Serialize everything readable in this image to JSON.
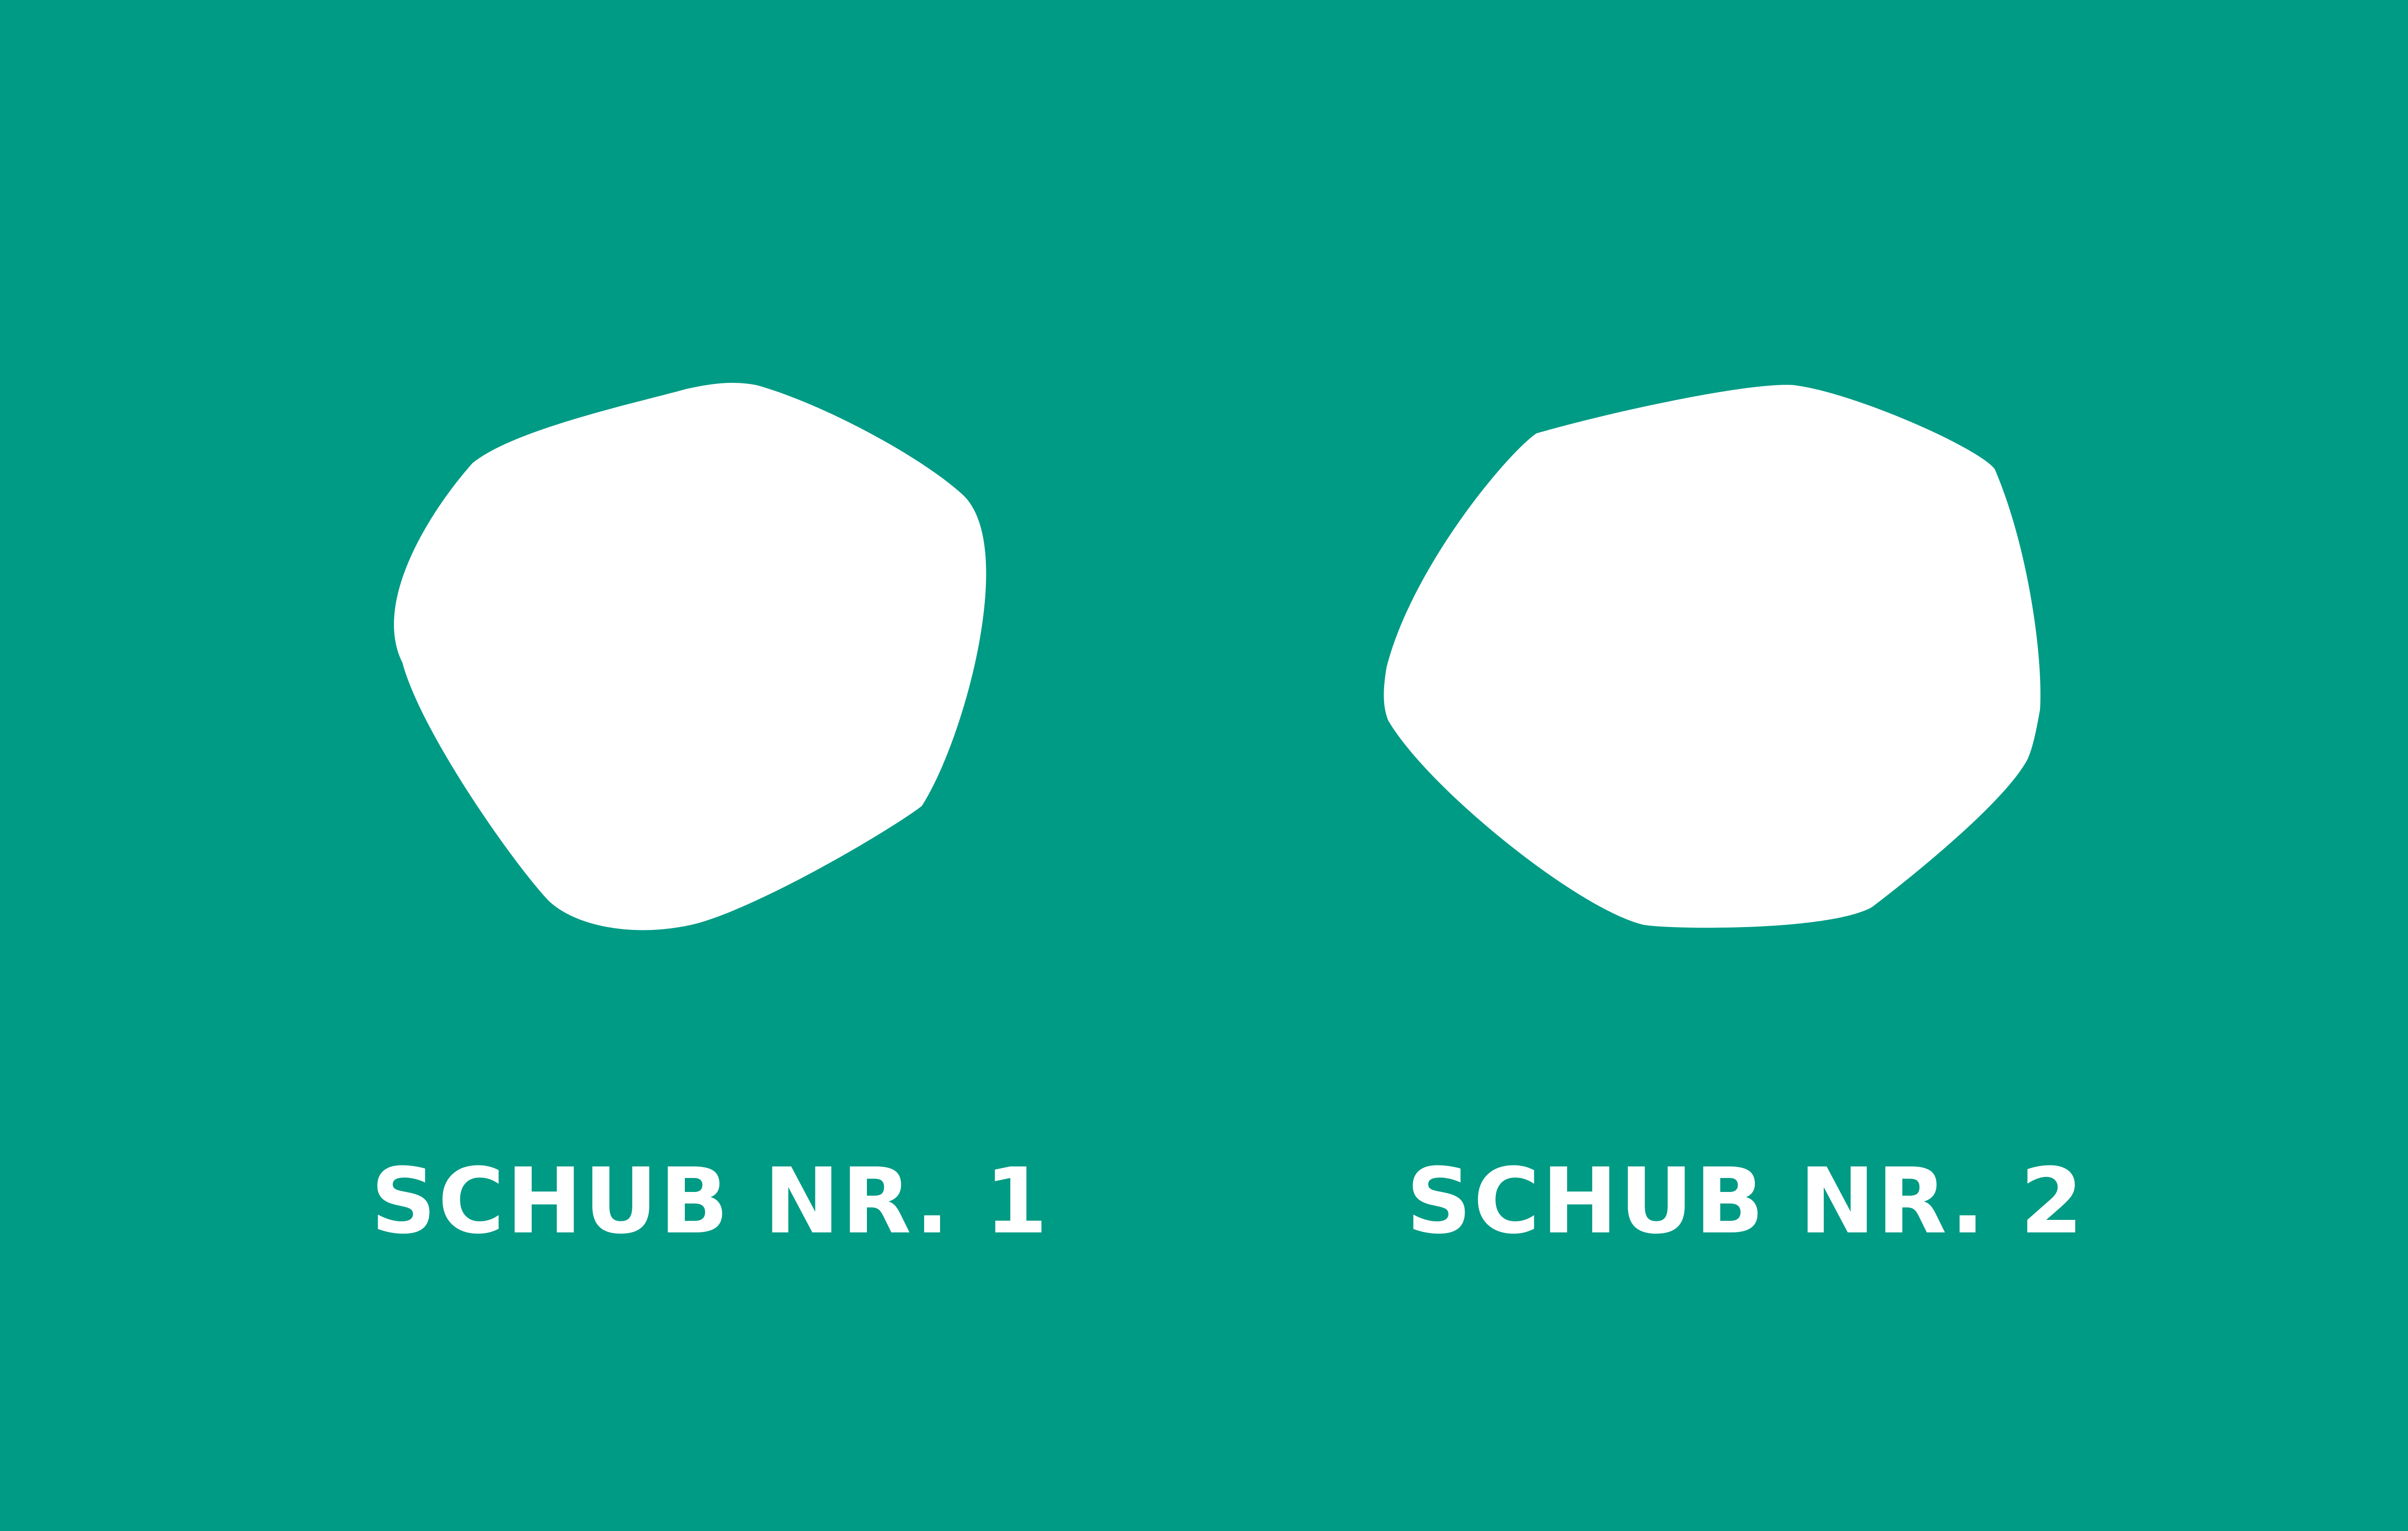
{
  "background_color": "#009B85",
  "shape_color": "#FFFFFF",
  "items": [
    {
      "label": "SCHUB NR. 1"
    },
    {
      "label": "SCHUB NR. 2"
    }
  ]
}
